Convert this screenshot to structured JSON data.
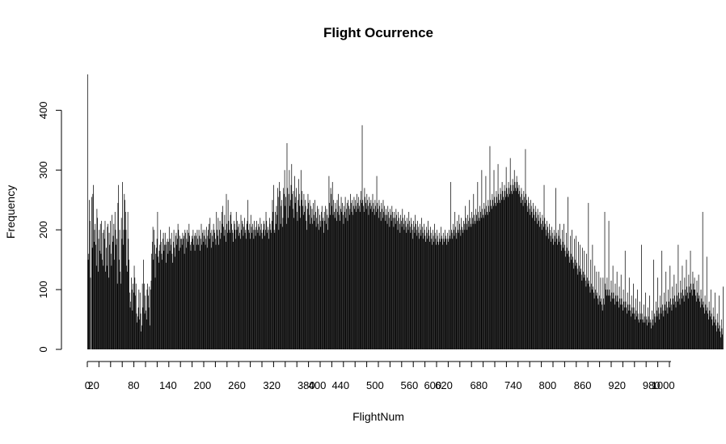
{
  "chart_data": {
    "type": "bar",
    "title": "Flight Ocurrence",
    "xlabel": "FlightNum",
    "ylabel": "Frequency",
    "ylim": [
      0,
      460
    ],
    "yticks": [
      0,
      100,
      200,
      300,
      400
    ],
    "x_category_count": 1040,
    "xtick_labels": [
      {
        "label": "0",
        "index": 0
      },
      {
        "label": "20",
        "index": 10
      },
      {
        "label": "80",
        "index": 79
      },
      {
        "label": "140",
        "index": 138
      },
      {
        "label": "200",
        "index": 197
      },
      {
        "label": "260",
        "index": 256
      },
      {
        "label": "320",
        "index": 316
      },
      {
        "label": "380",
        "index": 375
      },
      {
        "label": "400",
        "index": 394
      },
      {
        "label": "440",
        "index": 434
      },
      {
        "label": "500",
        "index": 493
      },
      {
        "label": "560",
        "index": 552
      },
      {
        "label": "600",
        "index": 592
      },
      {
        "label": "620",
        "index": 611
      },
      {
        "label": "680",
        "index": 671
      },
      {
        "label": "740",
        "index": 730
      },
      {
        "label": "800",
        "index": 789
      },
      {
        "label": "860",
        "index": 849
      },
      {
        "label": "920",
        "index": 908
      },
      {
        "label": "980",
        "index": 967
      },
      {
        "label": "1000",
        "index": 987
      }
    ],
    "bar_color": "#000000",
    "grid": false,
    "values": [
      460,
      150,
      160,
      250,
      215,
      120,
      0,
      255,
      170,
      260,
      275,
      180,
      200,
      210,
      175,
      140,
      235,
      220,
      130,
      185,
      200,
      165,
      210,
      160,
      215,
      150,
      195,
      140,
      200,
      185,
      215,
      130,
      170,
      140,
      205,
      210,
      120,
      195,
      175,
      215,
      160,
      140,
      225,
      180,
      190,
      210,
      150,
      230,
      200,
      175,
      185,
      110,
      245,
      275,
      150,
      200,
      130,
      110,
      220,
      185,
      280,
      175,
      200,
      260,
      250,
      230,
      200,
      140,
      130,
      230,
      185,
      150,
      95,
      70,
      80,
      120,
      100,
      65,
      110,
      95,
      140,
      120,
      90,
      110,
      60,
      45,
      55,
      70,
      100,
      50,
      95,
      60,
      30,
      40,
      110,
      70,
      150,
      110,
      60,
      90,
      65,
      50,
      100,
      110,
      90,
      70,
      105,
      40,
      100,
      115,
      160,
      180,
      205,
      150,
      200,
      175,
      120,
      160,
      170,
      185,
      230,
      155,
      145,
      165,
      175,
      200,
      180,
      160,
      150,
      185,
      195,
      165,
      175,
      195,
      175,
      145,
      180,
      185,
      160,
      180,
      205,
      165,
      185,
      175,
      195,
      160,
      145,
      180,
      200,
      170,
      155,
      190,
      195,
      175,
      185,
      210,
      200,
      165,
      190,
      170,
      185,
      185,
      175,
      195,
      185,
      190,
      160,
      200,
      195,
      170,
      185,
      200,
      180,
      195,
      210,
      190,
      175,
      165,
      180,
      190,
      185,
      200,
      175,
      190,
      165,
      195,
      190,
      175,
      200,
      185,
      175,
      200,
      190,
      165,
      185,
      210,
      175,
      195,
      200,
      180,
      190,
      200,
      175,
      185,
      205,
      170,
      190,
      200,
      210,
      185,
      220,
      195,
      170,
      200,
      190,
      180,
      210,
      200,
      195,
      185,
      175,
      230,
      200,
      190,
      220,
      175,
      200,
      215,
      185,
      195,
      230,
      210,
      240,
      205,
      190,
      225,
      200,
      180,
      260,
      210,
      195,
      250,
      215,
      200,
      195,
      225,
      230,
      210,
      200,
      195,
      180,
      215,
      210,
      200,
      185,
      230,
      200,
      215,
      205,
      190,
      210,
      195,
      185,
      225,
      200,
      215,
      210,
      190,
      205,
      220,
      195,
      200,
      185,
      210,
      215,
      250,
      200,
      195,
      210,
      185,
      225,
      205,
      195,
      210,
      200,
      185,
      215,
      200,
      190,
      205,
      215,
      200,
      195,
      210,
      205,
      190,
      220,
      200,
      210,
      195,
      185,
      200,
      215,
      210,
      190,
      200,
      230,
      215,
      195,
      205,
      200,
      185,
      220,
      210,
      200,
      195,
      215,
      250,
      230,
      275,
      200,
      195,
      230,
      210,
      240,
      225,
      270,
      255,
      200,
      280,
      265,
      210,
      240,
      250,
      205,
      220,
      270,
      260,
      300,
      240,
      255,
      210,
      345,
      270,
      220,
      260,
      300,
      240,
      250,
      275,
      310,
      260,
      235,
      265,
      220,
      290,
      245,
      255,
      270,
      230,
      215,
      250,
      285,
      260,
      240,
      220,
      300,
      250,
      265,
      240,
      225,
      260,
      230,
      250,
      240,
      215,
      200,
      235,
      260,
      245,
      225,
      250,
      210,
      240,
      220,
      235,
      210,
      245,
      225,
      215,
      250,
      230,
      205,
      220,
      240,
      210,
      235,
      200,
      225,
      215,
      205,
      230,
      240,
      215,
      220,
      195,
      230,
      215,
      240,
      210,
      235,
      225,
      200,
      220,
      290,
      245,
      225,
      270,
      260,
      240,
      280,
      225,
      250,
      230,
      220,
      245,
      235,
      215,
      250,
      230,
      260,
      225,
      240,
      215,
      235,
      255,
      230,
      245,
      225,
      210,
      240,
      230,
      255,
      220,
      235,
      245,
      215,
      250,
      240,
      225,
      235,
      260,
      245,
      230,
      250,
      225,
      240,
      255,
      235,
      250,
      240,
      230,
      260,
      245,
      235,
      255,
      240,
      230,
      250,
      265,
      245,
      375,
      250,
      240,
      230,
      270,
      255,
      245,
      235,
      260,
      250,
      240,
      225,
      255,
      245,
      235,
      250,
      240,
      230,
      260,
      245,
      235,
      225,
      250,
      240,
      230,
      290,
      245,
      235,
      220,
      250,
      240,
      230,
      215,
      245,
      235,
      220,
      250,
      230,
      240,
      225,
      215,
      235,
      225,
      210,
      240,
      230,
      220,
      205,
      235,
      225,
      215,
      240,
      230,
      220,
      205,
      230,
      220,
      210,
      235,
      225,
      215,
      200,
      230,
      220,
      210,
      195,
      225,
      215,
      205,
      235,
      220,
      210,
      200,
      225,
      215,
      205,
      195,
      220,
      210,
      200,
      230,
      215,
      205,
      195,
      220,
      210,
      200,
      185,
      215,
      205,
      195,
      225,
      210,
      200,
      190,
      215,
      205,
      195,
      185,
      210,
      200,
      190,
      220,
      205,
      195,
      185,
      210,
      200,
      190,
      180,
      205,
      195,
      185,
      215,
      200,
      190,
      180,
      205,
      195,
      185,
      175,
      200,
      190,
      180,
      210,
      195,
      185,
      175,
      200,
      190,
      180,
      175,
      195,
      185,
      180,
      205,
      190,
      185,
      175,
      195,
      185,
      180,
      200,
      190,
      185,
      175,
      195,
      185,
      180,
      200,
      190,
      185,
      280,
      200,
      195,
      185,
      210,
      200,
      190,
      230,
      205,
      195,
      185,
      215,
      200,
      195,
      225,
      210,
      200,
      190,
      220,
      205,
      200,
      195,
      215,
      210,
      200,
      240,
      220,
      210,
      200,
      225,
      215,
      205,
      250,
      220,
      210,
      205,
      230,
      220,
      210,
      260,
      225,
      215,
      210,
      235,
      225,
      215,
      280,
      230,
      220,
      215,
      240,
      230,
      220,
      300,
      235,
      225,
      220,
      245,
      235,
      225,
      290,
      240,
      230,
      225,
      250,
      240,
      230,
      340,
      250,
      240,
      235,
      260,
      250,
      240,
      300,
      255,
      245,
      240,
      265,
      255,
      245,
      310,
      260,
      250,
      245,
      270,
      260,
      250,
      280,
      265,
      255,
      250,
      275,
      265,
      255,
      305,
      270,
      260,
      255,
      280,
      270,
      260,
      320,
      275,
      265,
      260,
      285,
      275,
      265,
      300,
      280,
      270,
      265,
      290,
      280,
      270,
      260,
      275,
      265,
      255,
      245,
      270,
      260,
      250,
      240,
      265,
      255,
      245,
      335,
      260,
      250,
      240,
      230,
      255,
      245,
      235,
      225,
      250,
      240,
      230,
      220,
      245,
      235,
      225,
      215,
      240,
      230,
      220,
      210,
      235,
      225,
      215,
      205,
      230,
      220,
      210,
      200,
      225,
      215,
      205,
      275,
      220,
      210,
      200,
      190,
      215,
      205,
      195,
      185,
      210,
      200,
      190,
      180,
      205,
      195,
      185,
      175,
      200,
      190,
      180,
      270,
      195,
      185,
      175,
      200,
      190,
      180,
      210,
      185,
      175,
      165,
      200,
      180,
      170,
      210,
      175,
      165,
      155,
      195,
      170,
      160,
      255,
      165,
      155,
      145,
      190,
      160,
      150,
      200,
      155,
      145,
      135,
      185,
      150,
      140,
      190,
      145,
      135,
      125,
      180,
      140,
      130,
      175,
      135,
      125,
      115,
      170,
      130,
      120,
      165,
      125,
      115,
      105,
      160,
      120,
      110,
      245,
      115,
      105,
      95,
      150,
      110,
      100,
      175,
      105,
      95,
      85,
      140,
      100,
      90,
      130,
      95,
      85,
      75,
      130,
      90,
      80,
      120,
      85,
      75,
      65,
      120,
      85,
      75,
      230,
      110,
      100,
      90,
      120,
      100,
      90,
      215,
      100,
      90,
      80,
      115,
      95,
      85,
      140,
      95,
      85,
      75,
      110,
      90,
      80,
      130,
      90,
      80,
      70,
      105,
      85,
      75,
      125,
      85,
      75,
      65,
      100,
      80,
      70,
      165,
      80,
      70,
      60,
      95,
      75,
      65,
      120,
      75,
      65,
      55,
      90,
      70,
      60,
      110,
      70,
      60,
      50,
      85,
      65,
      55,
      100,
      60,
      50,
      45,
      80,
      60,
      50,
      175,
      60,
      50,
      45,
      75,
      55,
      45,
      95,
      55,
      50,
      40,
      70,
      55,
      45,
      90,
      50,
      45,
      35,
      65,
      50,
      40,
      150,
      60,
      55,
      45,
      80,
      65,
      55,
      120,
      70,
      60,
      50,
      90,
      70,
      60,
      165,
      75,
      65,
      55,
      95,
      75,
      65,
      130,
      80,
      70,
      60,
      100,
      80,
      70,
      140,
      85,
      75,
      65,
      105,
      85,
      75,
      125,
      90,
      80,
      70,
      110,
      90,
      80,
      175,
      95,
      85,
      75,
      115,
      95,
      85,
      140,
      100,
      90,
      80,
      120,
      100,
      90,
      150,
      105,
      95,
      85,
      125,
      105,
      95,
      165,
      110,
      100,
      90,
      130,
      110,
      100,
      120,
      100,
      90,
      80,
      115,
      95,
      85,
      125,
      90,
      80,
      70,
      100,
      85,
      75,
      230,
      80,
      70,
      60,
      90,
      75,
      65,
      155,
      70,
      60,
      50,
      80,
      65,
      55,
      100,
      60,
      50,
      40,
      70,
      55,
      45,
      95,
      50,
      40,
      30,
      60,
      45,
      35,
      90,
      40,
      30,
      20,
      50,
      35,
      25,
      105
    ]
  }
}
